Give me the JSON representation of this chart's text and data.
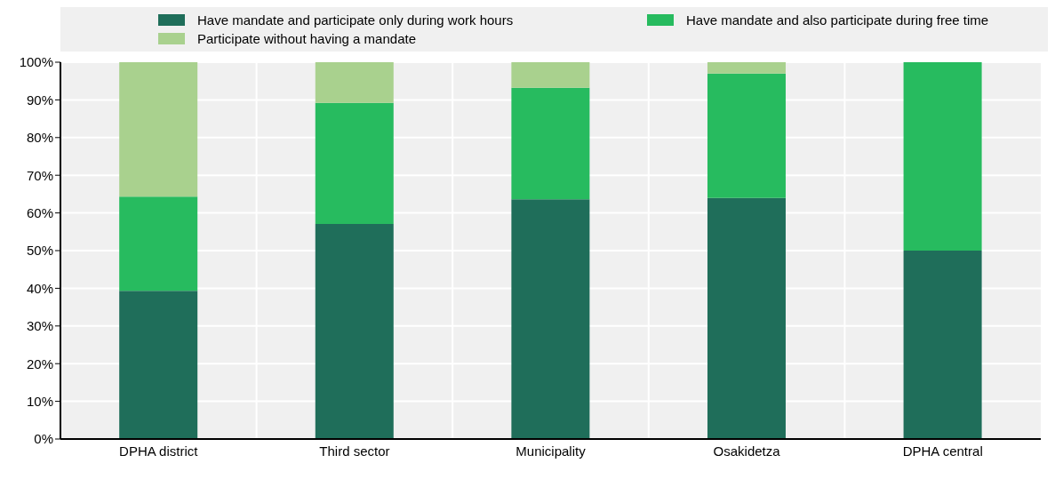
{
  "chart_data": {
    "type": "bar",
    "stacked": true,
    "categories": [
      "DPHA district",
      "Third sector",
      "Municipality",
      "Osakidetza",
      "DPHA central"
    ],
    "series": [
      {
        "name": "Have mandate and participate only during work hours",
        "color": "#1f6e5a",
        "values": [
          39.3,
          57.1,
          63.6,
          64,
          50
        ]
      },
      {
        "name": "Have mandate and also participate during free time",
        "color": "#27bb5f",
        "values": [
          25,
          32.1,
          29.6,
          33,
          50
        ]
      },
      {
        "name": "Participate without having a mandate",
        "color": "#a9d18e",
        "values": [
          35.7,
          10.8,
          6.8,
          3,
          0
        ]
      }
    ],
    "ylim": [
      0,
      100
    ],
    "yticks": [
      {
        "value": 0,
        "label": "0%"
      },
      {
        "value": 10,
        "label": "10%"
      },
      {
        "value": 20,
        "label": "20%"
      },
      {
        "value": 30,
        "label": "30%"
      },
      {
        "value": 40,
        "label": "40%"
      },
      {
        "value": 50,
        "label": "50%"
      },
      {
        "value": 60,
        "label": "60%"
      },
      {
        "value": 70,
        "label": "70%"
      },
      {
        "value": 80,
        "label": "80%"
      },
      {
        "value": 90,
        "label": "90%"
      },
      {
        "value": 100,
        "label": "100%"
      }
    ],
    "grid": true,
    "legend": "top"
  }
}
